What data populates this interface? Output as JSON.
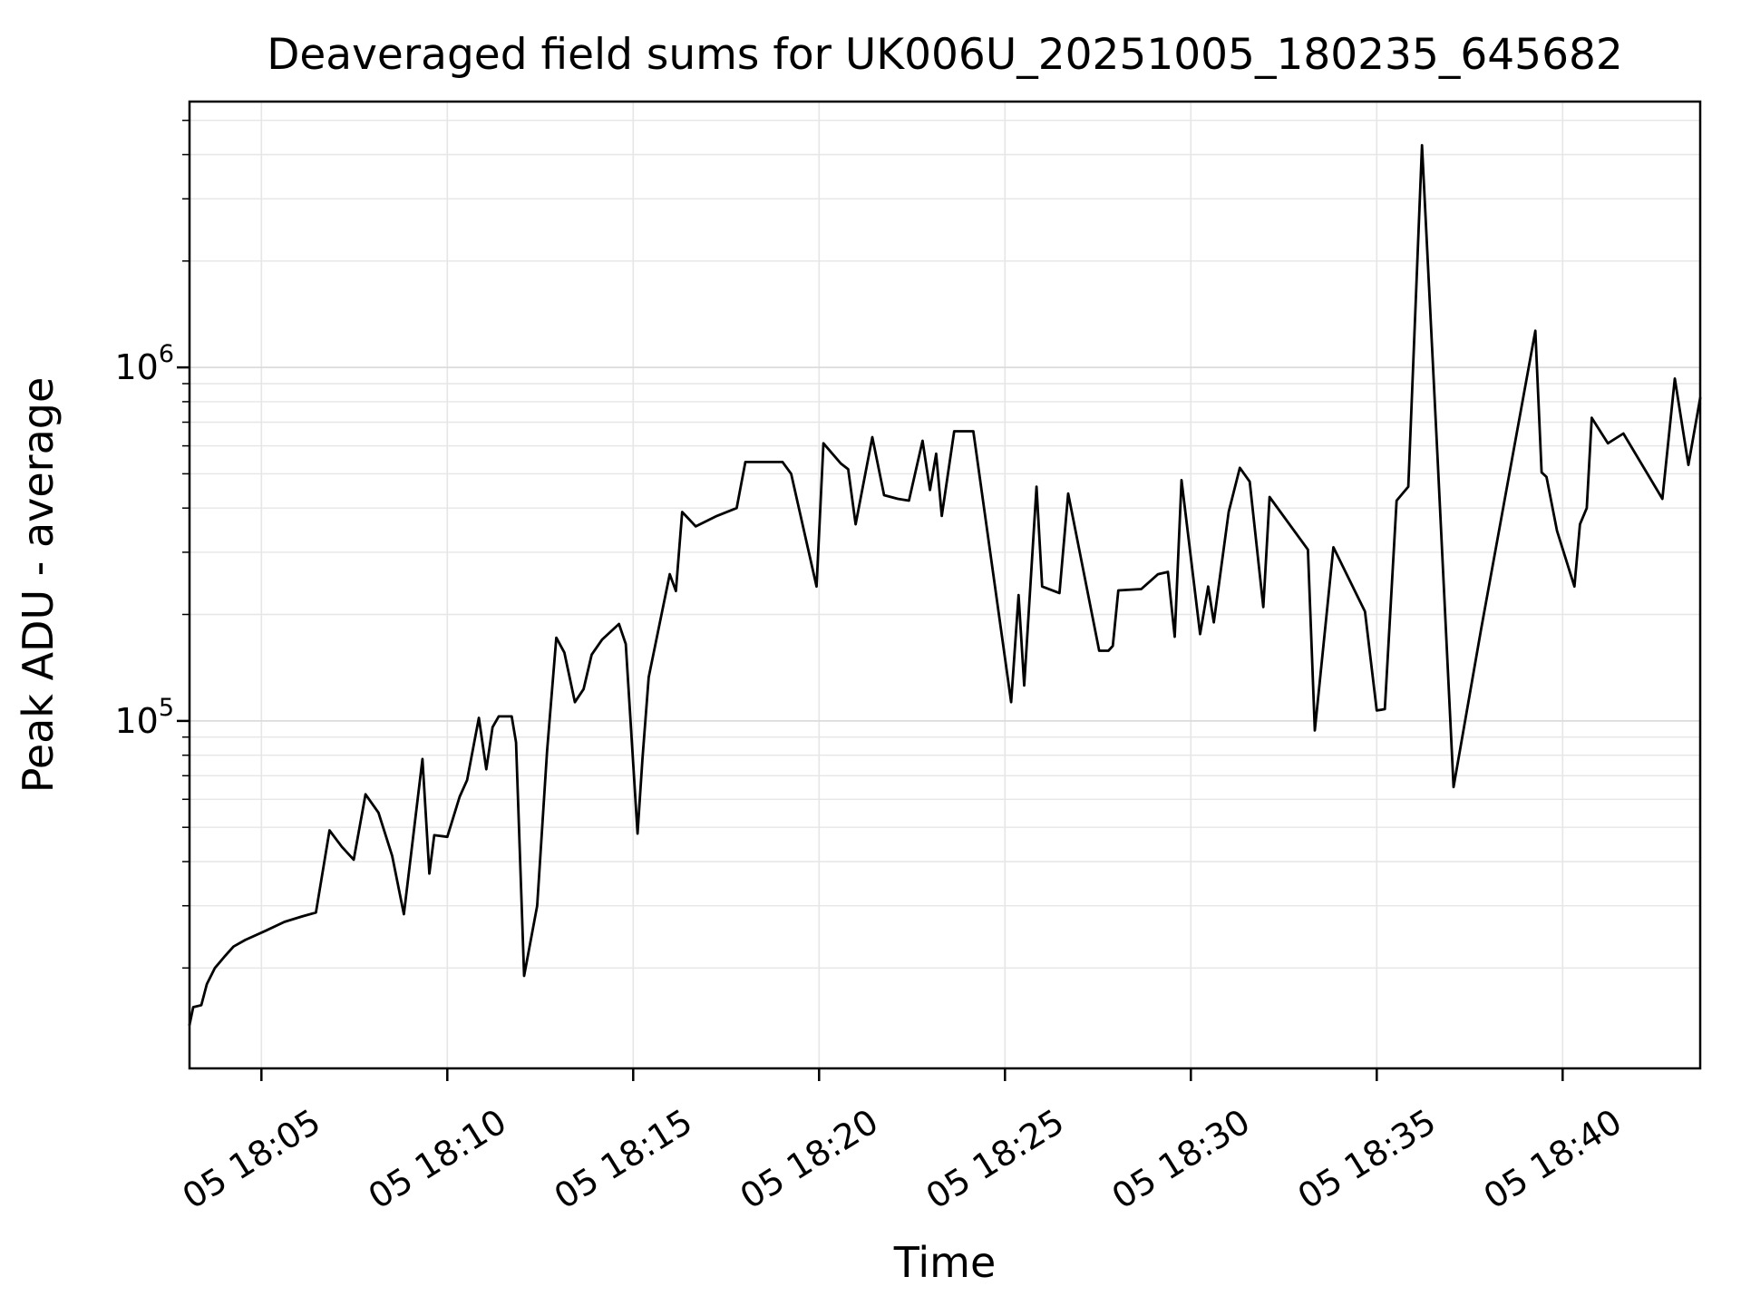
{
  "chart_data": {
    "type": "line",
    "title": "Deaveraged field sums for UK006U_20251005_180235_645682",
    "xlabel": "Time",
    "ylabel": "Peak ADU - average",
    "yscale": "log",
    "grid": "on",
    "legend": "none",
    "line_color": "#000000",
    "grid_minor_color": "#e6e6e6",
    "grid_major_color": "#dcdcdc",
    "frame_color": "#000000",
    "ylim": [
      10400,
      5650000
    ],
    "xlim": [
      "18:03:04",
      "18:43:42"
    ],
    "x_tick_rotation_deg": 32,
    "y_major_ticks": [
      {
        "value": 100000,
        "mantissa": "10",
        "exponent": "5"
      },
      {
        "value": 1000000,
        "mantissa": "10",
        "exponent": "6"
      }
    ],
    "x_ticks": [
      {
        "time": "18:05:00",
        "label": "05 18:05"
      },
      {
        "time": "18:10:00",
        "label": "05 18:10"
      },
      {
        "time": "18:15:00",
        "label": "05 18:15"
      },
      {
        "time": "18:20:00",
        "label": "05 18:20"
      },
      {
        "time": "18:25:00",
        "label": "05 18:25"
      },
      {
        "time": "18:30:00",
        "label": "05 18:30"
      },
      {
        "time": "18:35:00",
        "label": "05 18:35"
      },
      {
        "time": "18:40:00",
        "label": "05 18:40"
      }
    ],
    "series": [
      {
        "name": "peak-adu-average",
        "points": [
          [
            "18:03:04",
            13800
          ],
          [
            "18:03:10",
            15500
          ],
          [
            "18:03:23",
            15700
          ],
          [
            "18:03:32",
            18000
          ],
          [
            "18:03:45",
            20000
          ],
          [
            "18:04:00",
            21500
          ],
          [
            "18:04:15",
            23000
          ],
          [
            "18:04:34",
            24000
          ],
          [
            "18:05:07",
            25500
          ],
          [
            "18:05:37",
            27000
          ],
          [
            "18:06:06",
            28000
          ],
          [
            "18:06:28",
            28700
          ],
          [
            "18:06:50",
            49000
          ],
          [
            "18:07:10",
            44000
          ],
          [
            "18:07:29",
            40500
          ],
          [
            "18:07:48",
            62000
          ],
          [
            "18:08:09",
            55000
          ],
          [
            "18:08:31",
            41500
          ],
          [
            "18:08:50",
            28400
          ],
          [
            "18:09:20",
            78000
          ],
          [
            "18:09:31",
            37000
          ],
          [
            "18:09:39",
            47500
          ],
          [
            "18:10:00",
            47000
          ],
          [
            "18:10:20",
            61000
          ],
          [
            "18:10:32",
            68000
          ],
          [
            "18:10:51",
            102000
          ],
          [
            "18:11:03",
            73000
          ],
          [
            "18:11:13",
            96000
          ],
          [
            "18:11:23",
            103000
          ],
          [
            "18:11:44",
            103000
          ],
          [
            "18:11:51",
            87000
          ],
          [
            "18:12:04",
            19000
          ],
          [
            "18:12:25",
            30000
          ],
          [
            "18:12:41",
            82000
          ],
          [
            "18:12:56",
            172000
          ],
          [
            "18:13:09",
            156000
          ],
          [
            "18:13:26",
            113000
          ],
          [
            "18:13:40",
            123000
          ],
          [
            "18:13:53",
            154000
          ],
          [
            "18:14:10",
            170000
          ],
          [
            "18:14:37",
            188000
          ],
          [
            "18:14:48",
            165000
          ],
          [
            "18:15:07",
            48000
          ],
          [
            "18:15:15",
            78000
          ],
          [
            "18:15:25",
            133000
          ],
          [
            "18:15:59",
            260000
          ],
          [
            "18:16:09",
            233000
          ],
          [
            "18:16:19",
            390000
          ],
          [
            "18:16:41",
            355000
          ],
          [
            "18:17:15",
            380000
          ],
          [
            "18:17:47",
            400000
          ],
          [
            "18:18:01",
            540000
          ],
          [
            "18:19:01",
            540000
          ],
          [
            "18:19:15",
            500000
          ],
          [
            "18:19:56",
            240000
          ],
          [
            "18:20:07",
            610000
          ],
          [
            "18:20:35",
            535000
          ],
          [
            "18:20:47",
            515000
          ],
          [
            "18:20:59",
            360000
          ],
          [
            "18:21:26",
            635000
          ],
          [
            "18:21:45",
            435000
          ],
          [
            "18:22:07",
            425000
          ],
          [
            "18:22:25",
            420000
          ],
          [
            "18:22:47",
            620000
          ],
          [
            "18:22:59",
            450000
          ],
          [
            "18:23:09",
            570000
          ],
          [
            "18:23:18",
            380000
          ],
          [
            "18:23:38",
            660000
          ],
          [
            "18:24:09",
            660000
          ],
          [
            "18:25:10",
            113000
          ],
          [
            "18:25:22",
            227000
          ],
          [
            "18:25:31",
            126000
          ],
          [
            "18:25:51",
            460000
          ],
          [
            "18:26:00",
            240000
          ],
          [
            "18:26:28",
            230000
          ],
          [
            "18:26:42",
            440000
          ],
          [
            "18:27:32",
            158000
          ],
          [
            "18:27:47",
            158000
          ],
          [
            "18:27:54",
            163000
          ],
          [
            "18:28:03",
            234000
          ],
          [
            "18:28:40",
            236000
          ],
          [
            "18:29:07",
            260000
          ],
          [
            "18:29:23",
            264000
          ],
          [
            "18:29:34",
            173000
          ],
          [
            "18:29:45",
            480000
          ],
          [
            "18:30:15",
            176000
          ],
          [
            "18:30:28",
            240000
          ],
          [
            "18:30:37",
            190000
          ],
          [
            "18:31:01",
            390000
          ],
          [
            "18:31:19",
            520000
          ],
          [
            "18:31:35",
            475000
          ],
          [
            "18:31:57",
            210000
          ],
          [
            "18:32:07",
            430000
          ],
          [
            "18:33:09",
            305000
          ],
          [
            "18:33:20",
            94000
          ],
          [
            "18:33:50",
            310000
          ],
          [
            "18:34:34",
            216000
          ],
          [
            "18:34:41",
            204000
          ],
          [
            "18:35:00",
            107000
          ],
          [
            "18:35:13",
            108000
          ],
          [
            "18:35:32",
            420000
          ],
          [
            "18:35:51",
            460000
          ],
          [
            "18:36:13",
            4250000
          ],
          [
            "18:36:38",
            560000
          ],
          [
            "18:37:04",
            65000
          ],
          [
            "18:37:48",
            180000
          ],
          [
            "18:39:16",
            1270000
          ],
          [
            "18:39:26",
            505000
          ],
          [
            "18:39:34",
            490000
          ],
          [
            "18:39:51",
            345000
          ],
          [
            "18:40:19",
            240000
          ],
          [
            "18:40:28",
            360000
          ],
          [
            "18:40:39",
            400000
          ],
          [
            "18:40:47",
            720000
          ],
          [
            "18:41:13",
            610000
          ],
          [
            "18:41:38",
            650000
          ],
          [
            "18:42:41",
            425000
          ],
          [
            "18:43:01",
            930000
          ],
          [
            "18:43:23",
            530000
          ],
          [
            "18:43:42",
            820000
          ]
        ]
      }
    ]
  }
}
